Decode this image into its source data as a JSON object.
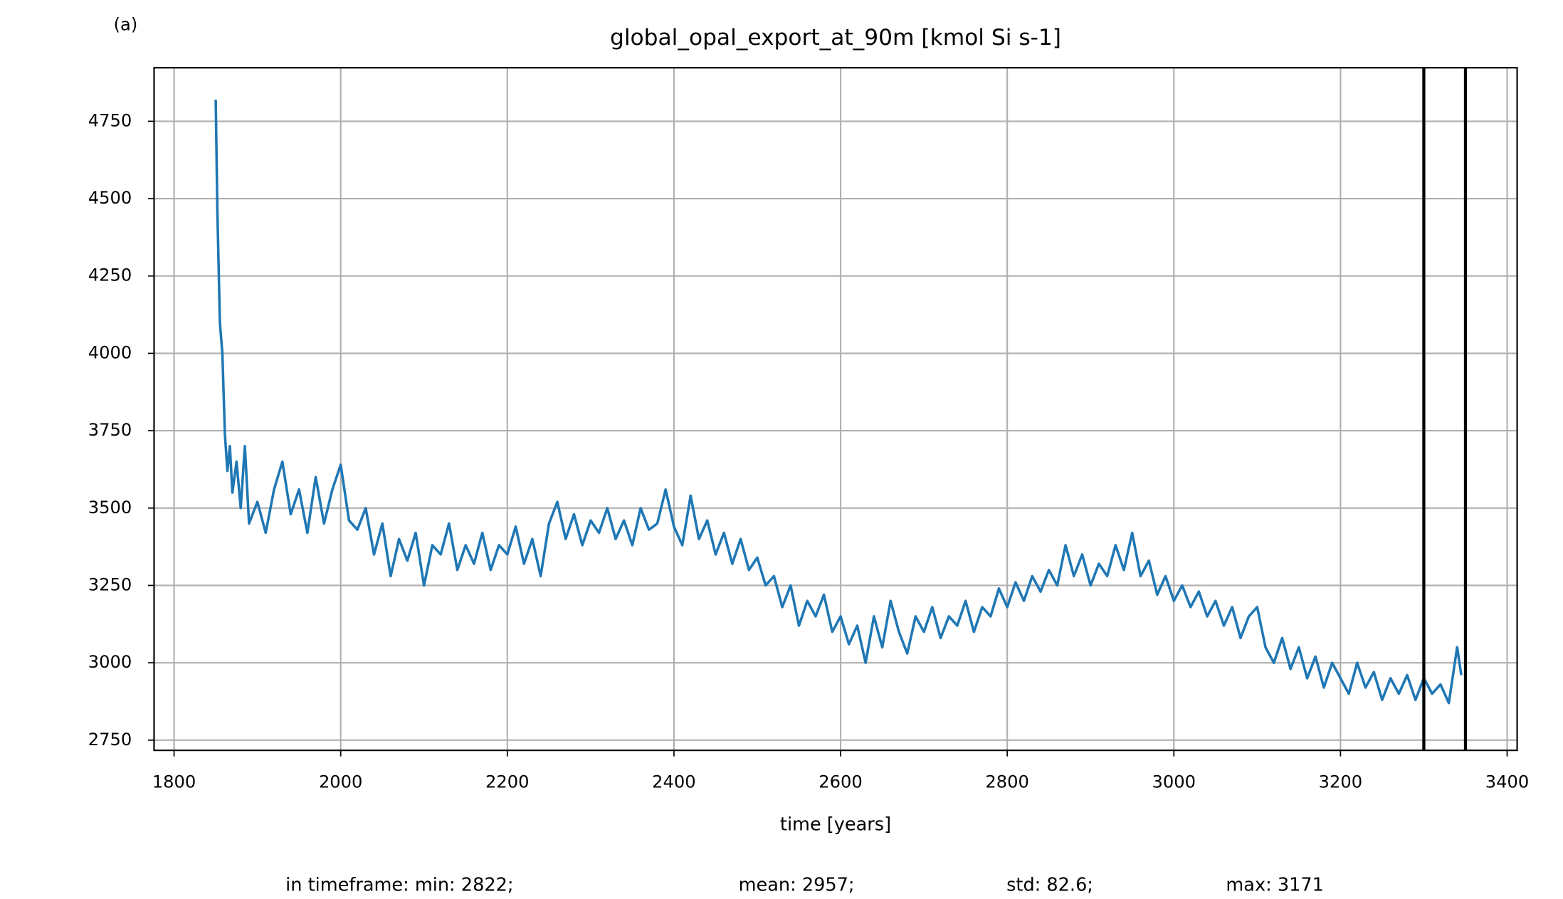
{
  "chart_data": {
    "type": "line",
    "panel_label": "(a)",
    "title": "global_opal_export_at_90m [kmol Si s-1]",
    "x_label": "time [years]",
    "stats": [
      "in timeframe: min: 2822;",
      "mean: 2957;",
      "std: 82.6;",
      "max: 3171"
    ],
    "x": [
      1850,
      1852,
      1855,
      1858,
      1861,
      1864,
      1867,
      1870,
      1875,
      1880,
      1885,
      1890,
      1900,
      1910,
      1920,
      1930,
      1940,
      1950,
      1960,
      1970,
      1980,
      1990,
      2000,
      2010,
      2020,
      2030,
      2040,
      2050,
      2060,
      2070,
      2080,
      2090,
      2100,
      2110,
      2120,
      2130,
      2140,
      2150,
      2160,
      2170,
      2180,
      2190,
      2200,
      2210,
      2220,
      2230,
      2240,
      2250,
      2260,
      2270,
      2280,
      2290,
      2300,
      2310,
      2320,
      2330,
      2340,
      2350,
      2360,
      2370,
      2380,
      2390,
      2400,
      2410,
      2420,
      2430,
      2440,
      2450,
      2460,
      2470,
      2480,
      2490,
      2500,
      2510,
      2520,
      2530,
      2540,
      2550,
      2560,
      2570,
      2580,
      2590,
      2600,
      2610,
      2620,
      2630,
      2640,
      2650,
      2660,
      2670,
      2680,
      2690,
      2700,
      2710,
      2720,
      2730,
      2740,
      2750,
      2760,
      2770,
      2780,
      2790,
      2800,
      2810,
      2820,
      2830,
      2840,
      2850,
      2860,
      2870,
      2880,
      2890,
      2900,
      2910,
      2920,
      2930,
      2940,
      2950,
      2960,
      2970,
      2980,
      2990,
      3000,
      3010,
      3020,
      3030,
      3040,
      3050,
      3060,
      3070,
      3080,
      3090,
      3100,
      3110,
      3120,
      3130,
      3140,
      3150,
      3160,
      3170,
      3180,
      3190,
      3200,
      3210,
      3220,
      3230,
      3240,
      3250,
      3260,
      3270,
      3280,
      3290,
      3300,
      3310,
      3320,
      3330,
      3340,
      3345
    ],
    "series": [
      {
        "name": "global_opal_export_at_90m",
        "color": "#1f77b4",
        "values": [
          4820,
          4460,
          4100,
          4000,
          3740,
          3620,
          3700,
          3550,
          3650,
          3500,
          3700,
          3450,
          3520,
          3420,
          3560,
          3650,
          3480,
          3560,
          3420,
          3600,
          3450,
          3560,
          3640,
          3460,
          3430,
          3500,
          3350,
          3450,
          3280,
          3400,
          3330,
          3420,
          3250,
          3380,
          3350,
          3450,
          3300,
          3380,
          3320,
          3420,
          3300,
          3380,
          3350,
          3440,
          3320,
          3400,
          3280,
          3450,
          3520,
          3400,
          3480,
          3380,
          3460,
          3420,
          3500,
          3400,
          3460,
          3380,
          3500,
          3430,
          3450,
          3560,
          3440,
          3380,
          3540,
          3400,
          3460,
          3350,
          3420,
          3320,
          3400,
          3300,
          3340,
          3250,
          3280,
          3180,
          3250,
          3120,
          3200,
          3150,
          3220,
          3100,
          3150,
          3060,
          3120,
          3000,
          3150,
          3050,
          3200,
          3100,
          3030,
          3150,
          3100,
          3180,
          3080,
          3150,
          3120,
          3200,
          3100,
          3180,
          3150,
          3240,
          3180,
          3260,
          3200,
          3280,
          3230,
          3300,
          3250,
          3380,
          3280,
          3350,
          3250,
          3320,
          3280,
          3380,
          3300,
          3420,
          3280,
          3330,
          3220,
          3280,
          3200,
          3250,
          3180,
          3230,
          3150,
          3200,
          3120,
          3180,
          3080,
          3150,
          3180,
          3050,
          3000,
          3080,
          2980,
          3050,
          2950,
          3020,
          2920,
          3000,
          2950,
          2900,
          3000,
          2920,
          2970,
          2880,
          2950,
          2900,
          2960,
          2880,
          2950,
          2900,
          2930,
          2870,
          3050,
          2960
        ]
      }
    ],
    "vlines": [
      3300,
      3350
    ],
    "xlim": [
      1776,
      3412
    ],
    "xticks": [
      1800,
      2000,
      2200,
      2400,
      2600,
      2800,
      3000,
      3200,
      3400
    ],
    "ylim": [
      2717,
      4923
    ],
    "yticks": [
      2750,
      3000,
      3250,
      3500,
      3750,
      4000,
      4250,
      4500,
      4750
    ],
    "grid": true
  }
}
